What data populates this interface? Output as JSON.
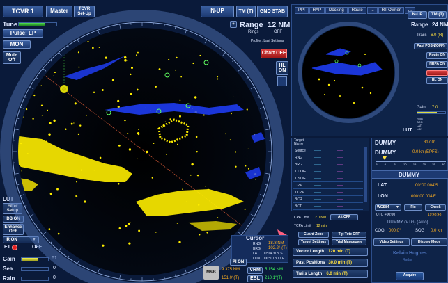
{
  "top": {
    "tcvr_label": "TCVR 1",
    "master_label": "Master",
    "tcvr_setup_label": "TCVR\nSet-Up",
    "nup_label": "N-UP",
    "tm_label": "TM (T)",
    "gndstab_label": "GND STAB",
    "range_label": "Range",
    "range_value": "12 NM",
    "rings_label": "Rings",
    "rings_value": "OFF",
    "profile_label": "Profile : Last Settings",
    "chart_off_label": "Chart OFF",
    "hl_on_label": "HL\nON"
  },
  "left": {
    "tune_label": "Tune",
    "pulse_label": "Pulse: LP",
    "mon_label": "MON",
    "mute_label": "Mute\nOff",
    "lut_label": "LUT",
    "filter_setup_label": "Filter\nSetup",
    "db_on_label": "DB ON",
    "enhance_label": "Enhance\nOFF",
    "ir_on_label": "IR ON",
    "et_label": "ET",
    "et_value": "OFF",
    "gain_label": "Gain",
    "gain_value": "61",
    "gain_level": 0.61,
    "sea_label": "Sea",
    "sea_value": "0",
    "sea_level": 0.0,
    "rain_label": "Rain",
    "rain_value": "0",
    "rain_level": 0.0
  },
  "cursor": {
    "title": "Cursor",
    "rng_label": "RNG",
    "rng_value": "18.8 NM",
    "brg_label": "BRG",
    "brg_value": "102.2° (T)",
    "lat_label": "LAT",
    "lat_value": "00°04.318' S",
    "lon_label": "LON",
    "lon_value": "000°10.300' E",
    "pion_label": "PI ON",
    "vrm_label": "VRM",
    "vrm_left": "9.375 NM",
    "vrm_value": "5.154 NM",
    "ebl_label": "EBL",
    "ebl_left": "151.0°(T)",
    "ebl_value": "210.1°(T)",
    "mob_label": "M&B"
  },
  "overview": {
    "tabs": [
      "PPI",
      "HAP",
      "Docking",
      "Route",
      "...",
      "RT Owner",
      "..."
    ],
    "nup_label": "N-UP",
    "tm_label": "TM (T)",
    "range_label": "Range",
    "range_value": "24 NM",
    "trails_label": "Trails",
    "trails_value": "6.0 (R)",
    "past_pos_label": "Past POSN(OFF)",
    "route_on_label": "Route ON",
    "nrpa_on_label": "NRPA ON",
    "hl_on_label": "HL ON",
    "gain_label": "Gain",
    "gain_value": "7.0",
    "lut_label": "LUT",
    "legend": [
      "RNG",
      "BRG",
      "LAT",
      "LON"
    ]
  },
  "target": {
    "header": "Target Name",
    "rows": [
      "Source",
      "RNG",
      "BRG",
      "T COG",
      "T SOG",
      "CPA",
      "TCPA",
      "BCR",
      "BCT"
    ],
    "cpa_limit_label": "CPA Limit",
    "cpa_limit_value": "2.0 NM",
    "alarm_label": "Alt OFF",
    "tcpa_limit_label": "TCPA Limit",
    "tcpa_limit_value": "12 min",
    "guard_zone_label": "Guard Zone",
    "tgt_tote_label": "Tgt Tote OFF",
    "target_settings_label": "Target Settings",
    "trial_manoeuvre_label": "Trial Manoeuvre",
    "vector_length_label": "Vector Length",
    "vector_length_value": "120 min",
    "vector_length_unit": "(T)",
    "past_positions_label": "Past Positions",
    "past_positions_value": "30.0 min",
    "past_positions_unit": "(T)",
    "trails_length_label": "Trails Length",
    "trails_length_value": "6.0 min",
    "trails_length_unit": "(T)"
  },
  "own": {
    "dummy1_label": "DUMMY",
    "dummy1_value": "317.0°",
    "dummy2_label": "DUMMY",
    "dummy2_value": "0.0 kn (EPFS)",
    "scale": [
      "-5",
      "0",
      "5",
      "10",
      "15",
      "20",
      "25",
      "30"
    ],
    "dummy3_label": "DUMMY",
    "lat_label": "LAT",
    "lat_value": "00°00.004'S",
    "lon_label": "LON",
    "lon_value": "000°00.004'E",
    "wgs_label": "WGS84",
    "fix_label": "Fix",
    "check_label": "Check",
    "utc_label": "UTC +00:00",
    "utc_value": "19:43:48",
    "vtg_label": "DUMMY (VTG) (Auto)",
    "cog_label": "COG",
    "cog_value": "000.0°",
    "sog_label": "SOG",
    "sog_value": "0.0 kn",
    "video_settings_label": "Video Settings",
    "display_mode_label": "Display Mode",
    "brand_label": "Kelvin Hughes",
    "brand_sub": "Radar",
    "acquire_label": "Acquire"
  },
  "colors": {
    "background": "#0a1a3a",
    "accent": "#3a5fa0",
    "echo": "#ffee00",
    "target": "#2040ff",
    "value_orange": "#ffb020"
  }
}
